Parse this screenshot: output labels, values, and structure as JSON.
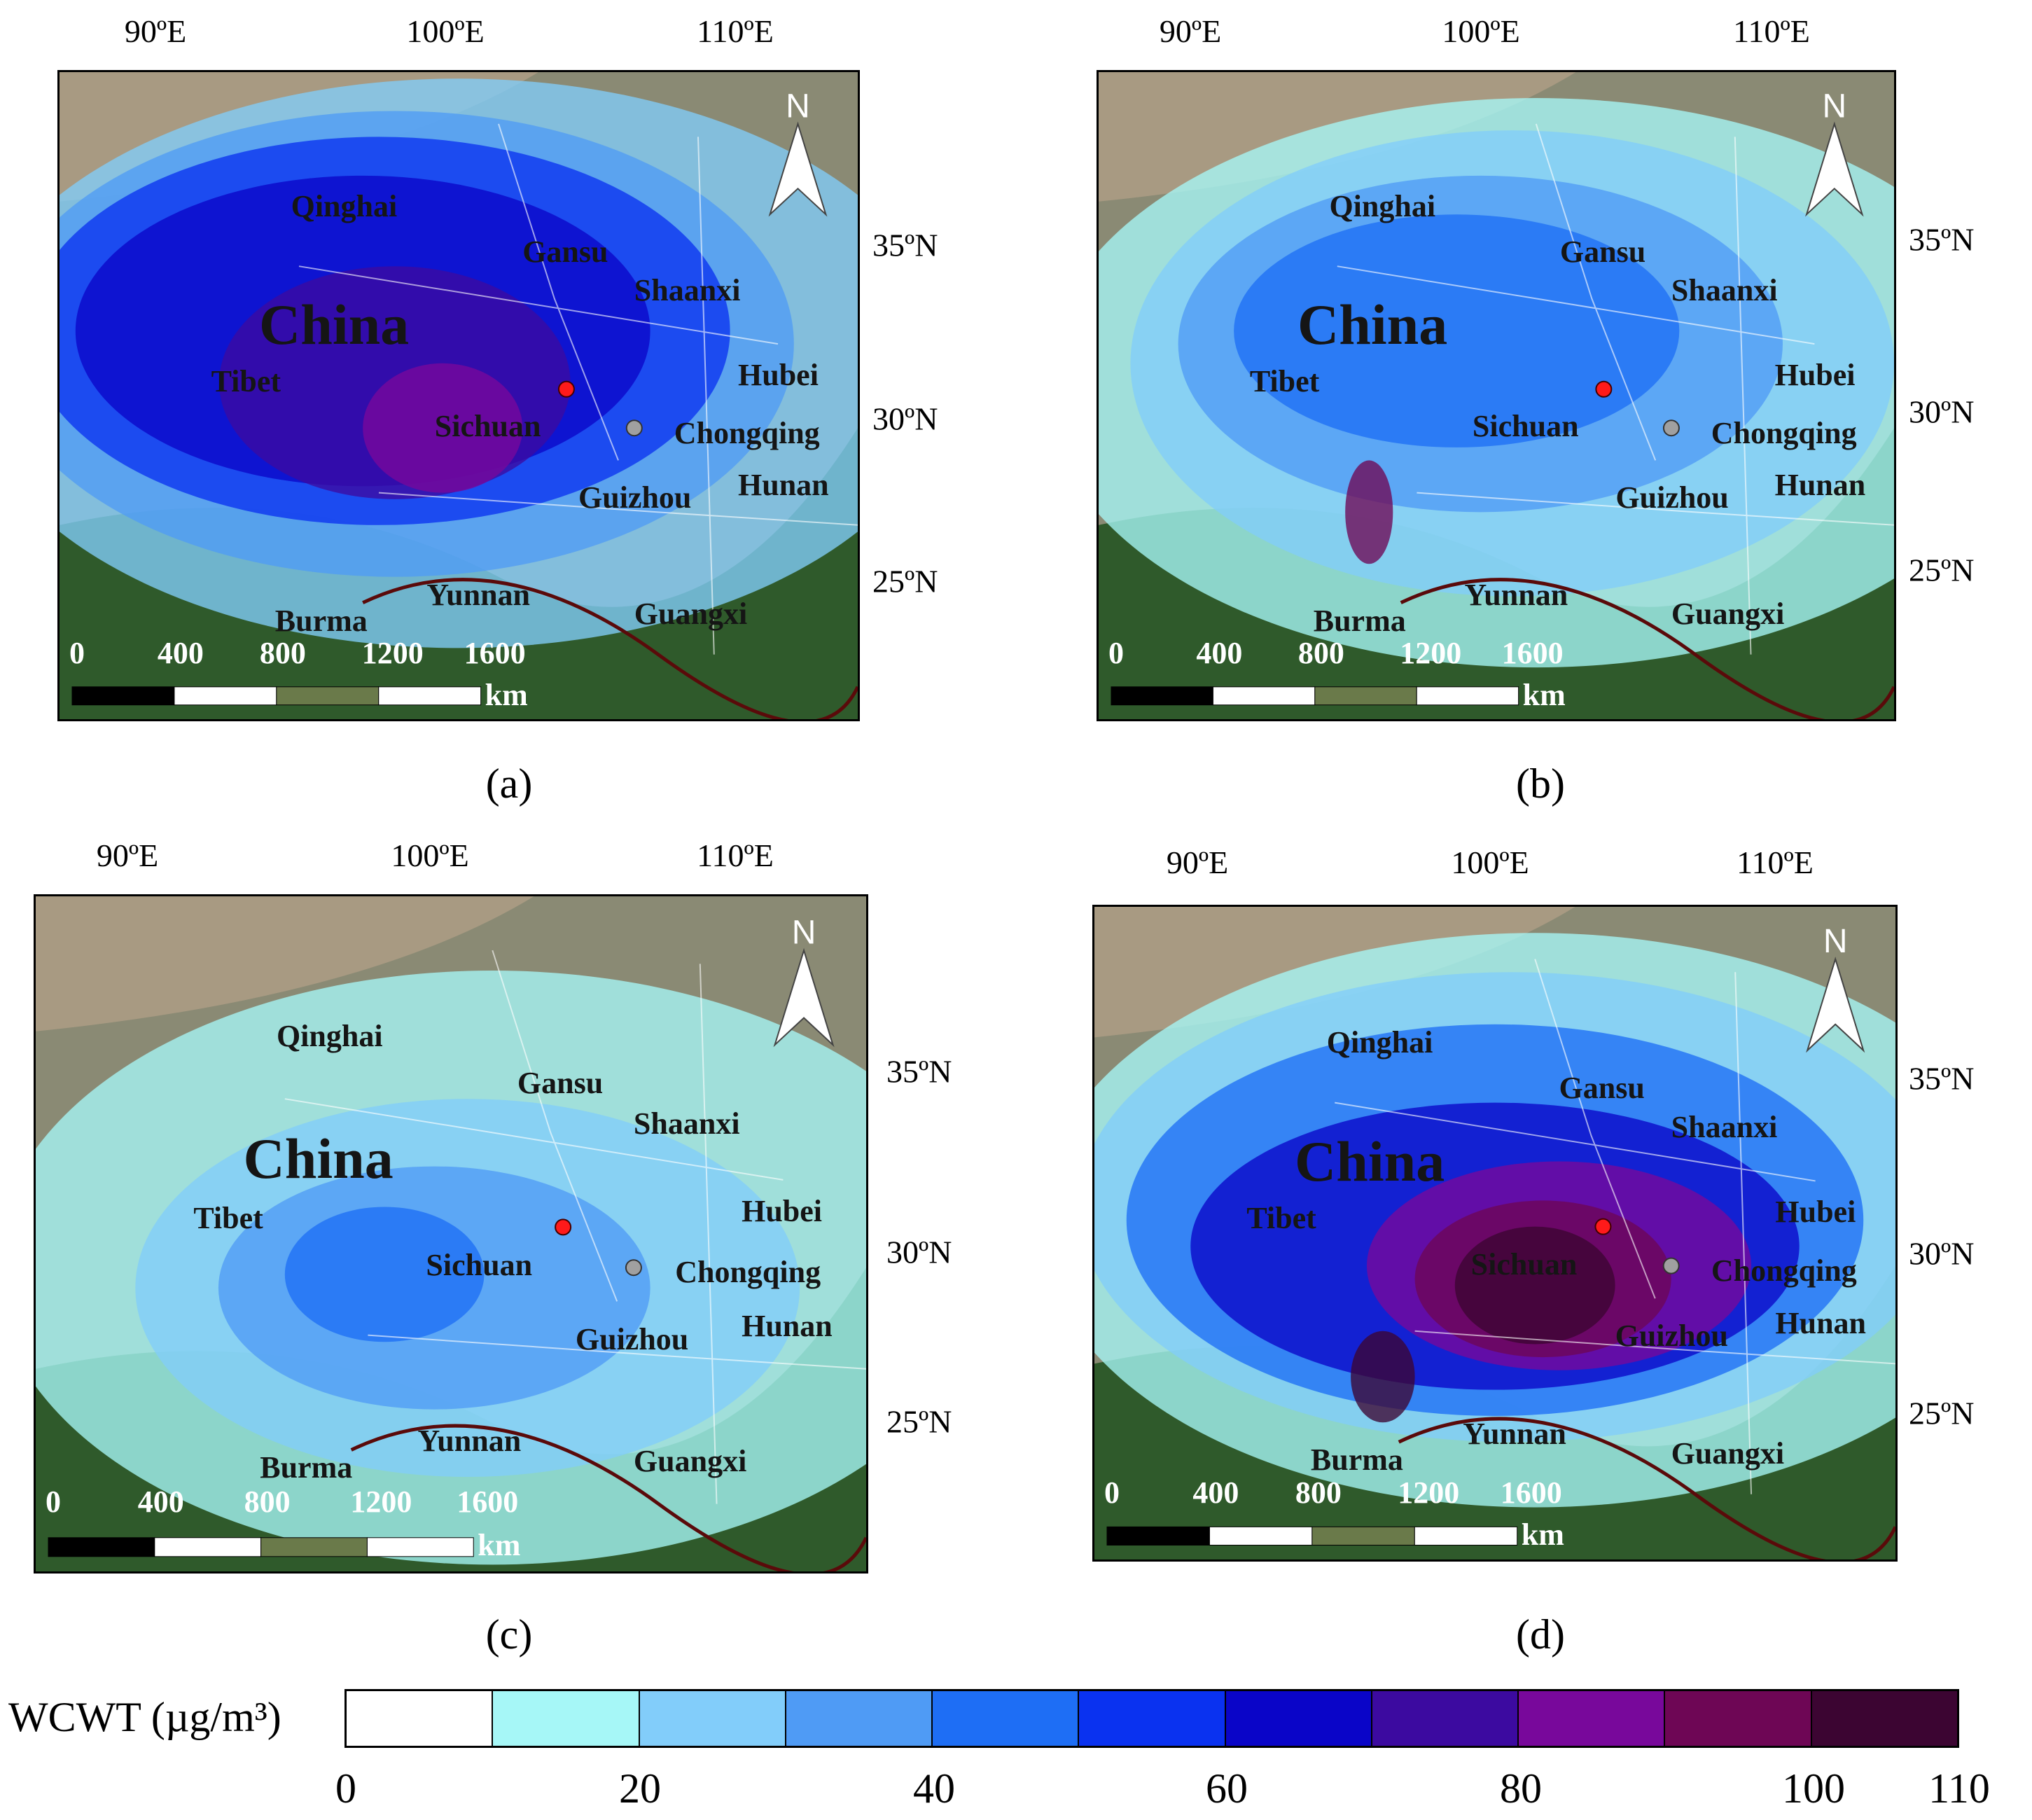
{
  "lon_labels": [
    "90ºE",
    "100ºE",
    "110ºE"
  ],
  "lat_labels": [
    "35ºN",
    "30ºN",
    "25ºN"
  ],
  "place_labels": {
    "country": "China",
    "provinces": [
      "Qinghai",
      "Gansu",
      "Shaanxi",
      "Tibet",
      "Sichuan",
      "Hubei",
      "Chongqing",
      "Guizhou",
      "Hunan",
      "Yunnan",
      "Guangxi",
      "Burma"
    ]
  },
  "scale_bar": {
    "ticks": [
      "0",
      "400",
      "800",
      "1200",
      "1600"
    ],
    "unit": "km"
  },
  "north_label": "N",
  "panels": [
    {
      "id": "a",
      "caption": "(a)"
    },
    {
      "id": "b",
      "caption": "(b)"
    },
    {
      "id": "c",
      "caption": "(c)"
    },
    {
      "id": "d",
      "caption": "(d)"
    }
  ],
  "legend": {
    "title": "WCWT (µg/m³)",
    "ticks": [
      "0",
      "20",
      "40",
      "60",
      "80",
      "100",
      "110"
    ],
    "colors": [
      "#ffffff",
      "#a6f7f7",
      "#82cdfa",
      "#4f9bf5",
      "#1e6ef5",
      "#0a32f0",
      "#0a05c8",
      "#3c0aa0",
      "#78089b",
      "#6e0655",
      "#3c0532"
    ]
  }
}
